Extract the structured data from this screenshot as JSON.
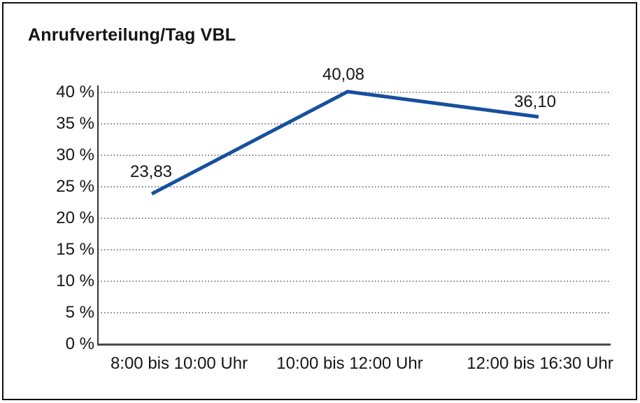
{
  "page": {
    "background": "#ffffff",
    "frame_border_color": "#101010"
  },
  "chart_data": {
    "type": "line",
    "title": "Anrufverteilung/Tag VBL",
    "categories": [
      "8:00 bis 10:00 Uhr",
      "10:00 bis 12:00 Uhr",
      "12:00 bis 16:30 Uhr"
    ],
    "values": [
      23.83,
      40.08,
      36.1
    ],
    "data_labels": [
      "23,83",
      "40,08",
      "36,10"
    ],
    "y_ticks": [
      {
        "value": 0,
        "label": "0 %"
      },
      {
        "value": 5,
        "label": "5 %"
      },
      {
        "value": 10,
        "label": "10 %"
      },
      {
        "value": 15,
        "label": "15 %"
      },
      {
        "value": 20,
        "label": "20 %"
      },
      {
        "value": 25,
        "label": "25 %"
      },
      {
        "value": 30,
        "label": "30 %"
      },
      {
        "value": 35,
        "label": "35 %"
      },
      {
        "value": 40,
        "label": "40 %"
      }
    ],
    "ylim": [
      0,
      41
    ],
    "xlabel": "",
    "ylabel": "",
    "grid": "horizontal-dotted",
    "legend_position": "none",
    "markers": "none",
    "line_color": "#174f9e",
    "grid_color": "#828282",
    "axis_color": "#3d3d3d",
    "text_color": "#161616"
  }
}
